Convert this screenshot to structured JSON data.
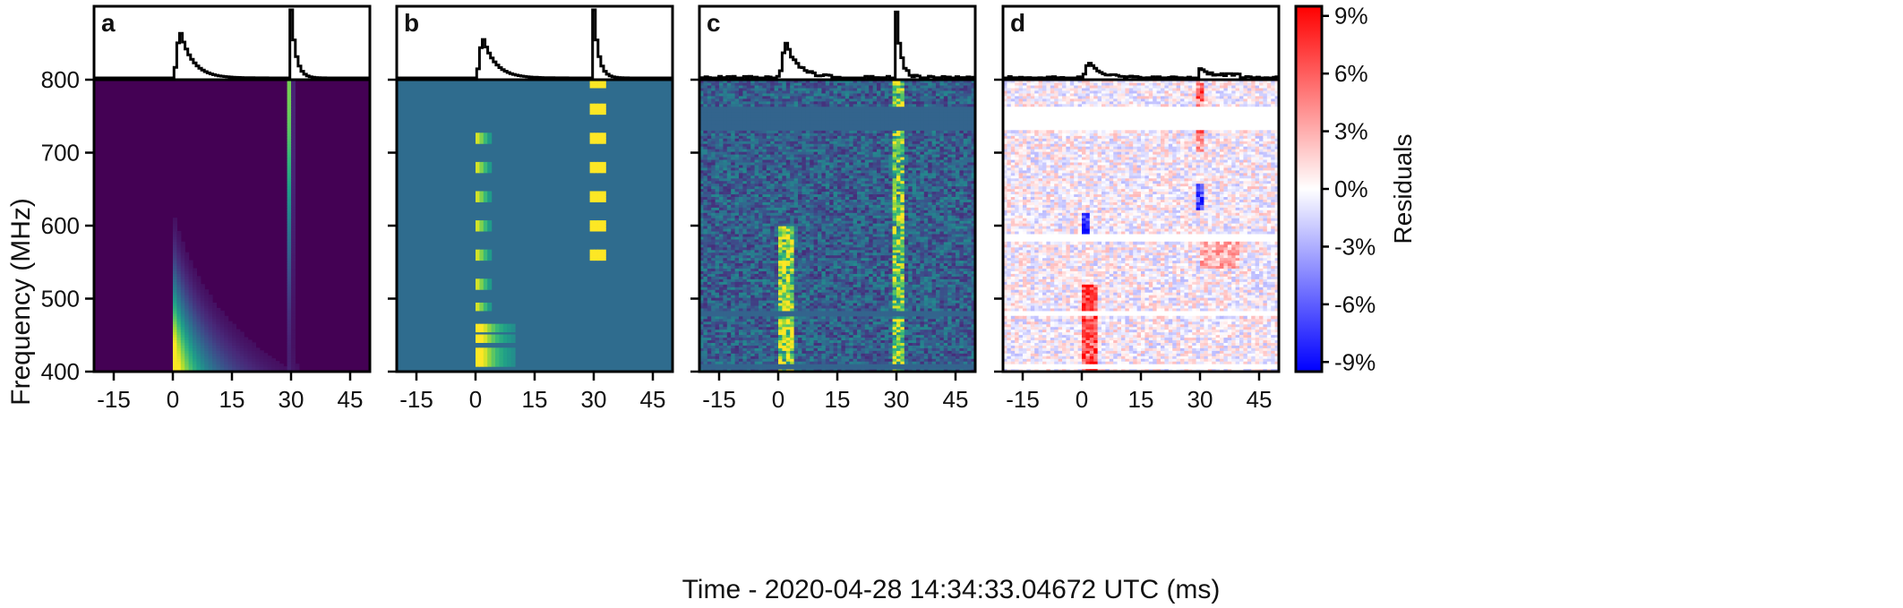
{
  "figure": {
    "xlabel": "Time - 2020-04-28 14:34:33.04672 UTC (ms)",
    "ylabel": "Frequency (MHz)"
  },
  "chart_data": [
    {
      "type": "heatmap",
      "panel": "a",
      "description_colormap": "viridis",
      "x_range": [
        -20,
        50
      ],
      "y_range": [
        400,
        800
      ],
      "xticks": [
        -15,
        0,
        15,
        30,
        45
      ],
      "xtick_labels": [
        "-15",
        "0",
        "15",
        "30",
        "45"
      ],
      "yticks": [
        400,
        500,
        600,
        700,
        800
      ],
      "ytick_labels": [
        "400",
        "500",
        "600",
        "700",
        "800"
      ],
      "profile": {
        "x_ms": [
          -20,
          0,
          0.5,
          1,
          2,
          3,
          4,
          6,
          8,
          12,
          20,
          28,
          29,
          29.5,
          30,
          30.5,
          31,
          32,
          34,
          40,
          50
        ],
        "intensity": [
          0,
          0,
          0.35,
          0.55,
          0.72,
          0.62,
          0.42,
          0.22,
          0.12,
          0.05,
          0.02,
          0.01,
          0.35,
          0.62,
          1.0,
          0.55,
          0.3,
          0.12,
          0.04,
          0.01,
          0
        ]
      },
      "components": [
        {
          "toa_ms": 0,
          "scattering_ms_at_400": 9,
          "peak_freq_mhz": 400
        },
        {
          "toa_ms": 30,
          "scattering_ms_at_400": 3,
          "peak_freq_mhz": 800
        }
      ]
    },
    {
      "type": "heatmap",
      "panel": "b",
      "description_colormap": "viridis",
      "x_range": [
        -20,
        50
      ],
      "y_range": [
        400,
        800
      ],
      "xticks": [
        -15,
        0,
        15,
        30,
        45
      ],
      "xtick_labels": [
        "-15",
        "0",
        "15",
        "30",
        "45"
      ],
      "components": [
        {
          "toa_ms": 0,
          "bright_bands_mhz": [
            415,
            425,
            445,
            460,
            490,
            520,
            560,
            600,
            640,
            680,
            720
          ]
        },
        {
          "toa_ms": 30,
          "bright_bands_mhz": [
            560,
            600,
            640,
            680,
            720,
            760,
            795
          ]
        }
      ]
    },
    {
      "type": "heatmap",
      "panel": "c",
      "description_colormap": "viridis",
      "x_range": [
        -20,
        50
      ],
      "y_range": [
        400,
        800
      ],
      "xticks": [
        -15,
        0,
        15,
        30,
        45
      ],
      "xtick_labels": [
        "-15",
        "0",
        "15",
        "30",
        "45"
      ],
      "masked_bands_mhz": [
        [
          405,
          412
        ],
        [
          475,
          482
        ],
        [
          730,
          762
        ]
      ]
    },
    {
      "type": "heatmap",
      "panel": "d",
      "description_colormap": "bwr",
      "x_range": [
        -20,
        50
      ],
      "y_range": [
        400,
        800
      ],
      "xticks": [
        -15,
        0,
        15,
        30,
        45
      ],
      "xtick_labels": [
        "-15",
        "0",
        "15",
        "30",
        "45"
      ],
      "masked_bands_mhz": [
        [
          405,
          412
        ],
        [
          475,
          482
        ],
        [
          578,
          588
        ],
        [
          730,
          762
        ]
      ],
      "colorbar": {
        "label": "Residuals",
        "range_pct": [
          -9.5,
          9.5
        ],
        "ticks_pct": [
          9,
          6,
          3,
          0,
          -3,
          -6,
          -9
        ],
        "tick_labels": [
          "9%",
          "6%",
          "3%",
          "0%",
          "-3%",
          "-6%",
          "-9%"
        ]
      }
    }
  ]
}
